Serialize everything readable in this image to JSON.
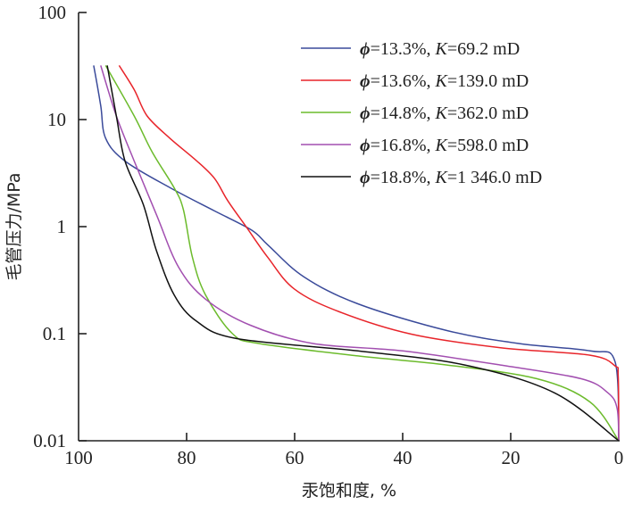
{
  "chart_data": {
    "type": "line",
    "title": "",
    "xlabel": "汞饱和度, %",
    "ylabel": "毛管压力/MPa",
    "xlim": [
      100,
      0
    ],
    "ylim": [
      0.01,
      100
    ],
    "yscale": "log",
    "x_reversed": true,
    "grid": false,
    "legend_position": "top-right",
    "x_ticks": [
      "100",
      "80",
      "60",
      "40",
      "20",
      "0"
    ],
    "x_tick_values": [
      100,
      80,
      60,
      40,
      20,
      0
    ],
    "y_ticks": [
      "100",
      "10",
      "1",
      "0.1",
      "0.01"
    ],
    "y_tick_values": [
      100,
      10,
      1,
      0.1,
      0.01
    ],
    "series": [
      {
        "name": "ϕ=13.3%, K=69.2 mD",
        "phi": "13.3%",
        "K": "69.2 mD",
        "color": "#3a4a9a",
        "points": [
          [
            97.2,
            32
          ],
          [
            95.9,
            13.5
          ],
          [
            95.0,
            6.7
          ],
          [
            91.4,
            4.1
          ],
          [
            83.0,
            2.3
          ],
          [
            74.8,
            1.4
          ],
          [
            68.0,
            0.93
          ],
          [
            64.9,
            0.67
          ],
          [
            58.3,
            0.34
          ],
          [
            48.3,
            0.19
          ],
          [
            31.8,
            0.107
          ],
          [
            18.5,
            0.081
          ],
          [
            5.3,
            0.069
          ],
          [
            0.7,
            0.055
          ],
          [
            0,
            0.01
          ]
        ]
      },
      {
        "name": "ϕ=13.6%, K=139.0 mD",
        "phi": "13.6%",
        "K": "139.0 mD",
        "color": "#e8242a",
        "points": [
          [
            92.5,
            32
          ],
          [
            89.7,
            19
          ],
          [
            87.3,
            10.8
          ],
          [
            83.1,
            6.7
          ],
          [
            78.1,
            4.1
          ],
          [
            74.8,
            2.8
          ],
          [
            72.4,
            1.75
          ],
          [
            69.0,
            1.0
          ],
          [
            64.9,
            0.51
          ],
          [
            60.0,
            0.26
          ],
          [
            51.7,
            0.16
          ],
          [
            38.4,
            0.099
          ],
          [
            21.9,
            0.074
          ],
          [
            5.3,
            0.063
          ],
          [
            0.7,
            0.05
          ],
          [
            0.1,
            0.04
          ],
          [
            0,
            0.01
          ]
        ]
      },
      {
        "name": "ϕ=14.8%, K=362.0 mD",
        "phi": "14.8%",
        "K": "362.0 mD",
        "color": "#6cbb2c",
        "points": [
          [
            95.0,
            32
          ],
          [
            89.7,
            10.8
          ],
          [
            86.4,
            5.0
          ],
          [
            82.3,
            2.3
          ],
          [
            80.6,
            1.44
          ],
          [
            78.9,
            0.51
          ],
          [
            76.5,
            0.23
          ],
          [
            71.5,
            0.1
          ],
          [
            66.6,
            0.081
          ],
          [
            48.3,
            0.062
          ],
          [
            31.8,
            0.051
          ],
          [
            15.2,
            0.038
          ],
          [
            5.3,
            0.023
          ],
          [
            0,
            0.01
          ]
        ]
      },
      {
        "name": "ϕ=16.8%, K=598.0 mD",
        "phi": "16.8%",
        "K": "598.0 mD",
        "color": "#a24fb0",
        "points": [
          [
            95.9,
            32
          ],
          [
            93.0,
            10.8
          ],
          [
            89.7,
            4.1
          ],
          [
            85.6,
            1.3
          ],
          [
            81.5,
            0.42
          ],
          [
            76.5,
            0.21
          ],
          [
            68.2,
            0.12
          ],
          [
            56.6,
            0.081
          ],
          [
            40.0,
            0.069
          ],
          [
            21.9,
            0.051
          ],
          [
            7.0,
            0.038
          ],
          [
            2.0,
            0.028
          ],
          [
            0.3,
            0.02
          ],
          [
            0,
            0.01
          ]
        ]
      },
      {
        "name": "ϕ=18.8%, K=1 346.0 mD",
        "phi": "18.8%",
        "K": "1 346.0 mD",
        "color": "#111111",
        "points": [
          [
            94.7,
            32
          ],
          [
            93.0,
            10.8
          ],
          [
            91.4,
            4.1
          ],
          [
            88.0,
            1.6
          ],
          [
            85.6,
            0.6
          ],
          [
            82.3,
            0.23
          ],
          [
            78.1,
            0.13
          ],
          [
            70.7,
            0.09
          ],
          [
            48.3,
            0.069
          ],
          [
            28.5,
            0.051
          ],
          [
            11.9,
            0.028
          ],
          [
            0,
            0.01
          ]
        ]
      }
    ]
  }
}
